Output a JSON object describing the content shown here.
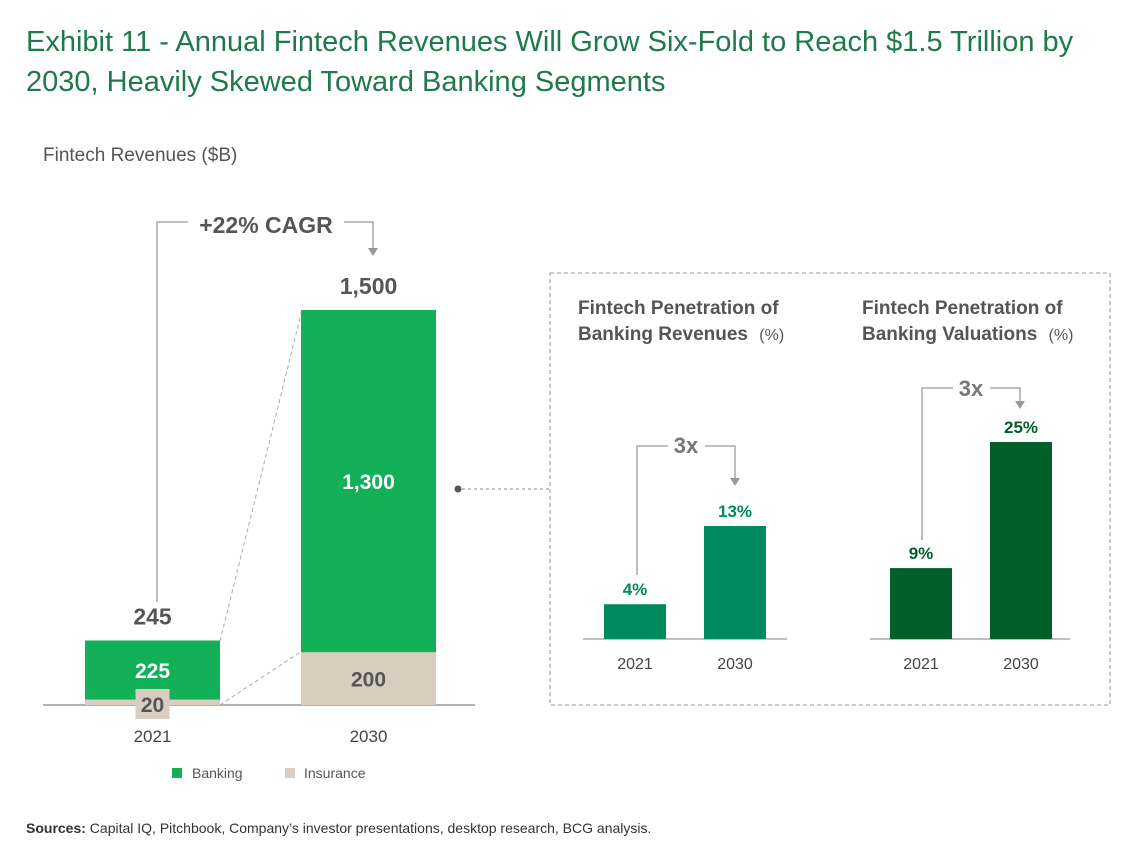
{
  "title": "Exhibit 11 - Annual Fintech Revenues Will Grow Six-Fold to Reach $1.5 Trillion by 2030, Heavily Skewed Toward Banking Segments",
  "sources_label": "Sources:",
  "sources_text": " Capital IQ, Pitchbook, Company’s investor presentations, desktop research, BCG analysis.",
  "colors": {
    "title": "#1e7a4a",
    "banking": "#13b157",
    "insurance": "#d9cdbf",
    "revenue_pen": "#008a5e",
    "valuation_pen": "#035f2a"
  },
  "chart_data": [
    {
      "type": "bar",
      "stacked": true,
      "title": "",
      "subtitle": "Fintech Revenues ($B)",
      "categories": [
        "2021",
        "2030"
      ],
      "series": [
        {
          "name": "Banking",
          "values": [
            225,
            1300
          ],
          "labels": [
            "225",
            "1,300"
          ]
        },
        {
          "name": "Insurance",
          "values": [
            20,
            200
          ],
          "labels": [
            "20",
            "200"
          ]
        }
      ],
      "totals": [
        245,
        1500
      ],
      "total_labels": [
        "245",
        "1,500"
      ],
      "annotation": "+22% CAGR",
      "legend": "bottom",
      "ylim": [
        0,
        1500
      ]
    },
    {
      "type": "bar",
      "title": "Fintech Penetration of Banking Revenues",
      "title_line1": "Fintech Penetration of",
      "title_line2": "Banking Revenues",
      "unit": "(%)",
      "categories": [
        "2021",
        "2030"
      ],
      "values": [
        4,
        13
      ],
      "labels": [
        "4%",
        "13%"
      ],
      "annotation": "3x",
      "ylim": [
        0,
        13
      ]
    },
    {
      "type": "bar",
      "title": "Fintech Penetration of Banking Valuations",
      "title_line1": "Fintech Penetration of",
      "title_line2": "Banking Valuations",
      "unit": "(%)",
      "categories": [
        "2021",
        "2030"
      ],
      "values": [
        9,
        25
      ],
      "labels": [
        "9%",
        "25%"
      ],
      "annotation": "3x",
      "ylim": [
        0,
        25
      ]
    }
  ]
}
